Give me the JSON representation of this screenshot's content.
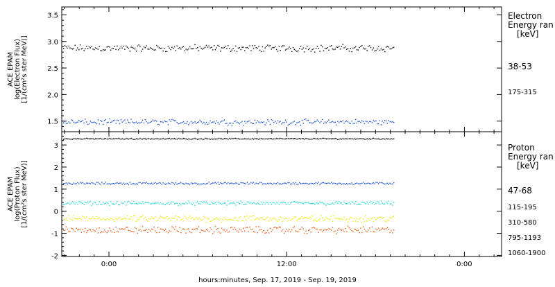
{
  "chart_data": [
    {
      "type": "scatter",
      "ylabel_lines": [
        "ACE EPAM",
        "log(Electron Flux)",
        "[1/(cm²s ster MeV)]"
      ],
      "ylim": [
        1.3,
        3.65
      ],
      "yticks": [
        1.5,
        2.0,
        2.5,
        3.0,
        3.5
      ],
      "ytick_labels": [
        "1.5",
        "2.0",
        "2.5",
        "3.0",
        "3.5"
      ],
      "legend_title": [
        "Electron",
        "Energy ran",
        "[keV]"
      ],
      "series": [
        {
          "name": "38-53",
          "color": "#000000",
          "mean": 2.88,
          "spread": 0.05
        },
        {
          "name": "175-315",
          "color": "#1a4fd0",
          "mean": 1.49,
          "spread": 0.04
        }
      ]
    },
    {
      "type": "scatter",
      "ylabel_lines": [
        "ACE EPAM",
        "log(Proton Flux)",
        "[1/(cm²s ster MeV)]"
      ],
      "ylim": [
        -2.05,
        3.6
      ],
      "yticks": [
        -2,
        -1,
        0,
        1,
        2,
        3
      ],
      "ytick_labels": [
        "-2",
        "-1",
        "0",
        "1",
        "2",
        "3"
      ],
      "legend_title": [
        "Proton",
        "Energy ran",
        "[keV]"
      ],
      "series": [
        {
          "name": "47-68",
          "color": "#000000",
          "mean": 3.3,
          "spread": 0.02
        },
        {
          "name": "115-195",
          "color": "#1a4fd0",
          "mean": 1.28,
          "spread": 0.04
        },
        {
          "name": "310-580",
          "color": "#20d8d8",
          "mean": 0.38,
          "spread": 0.07
        },
        {
          "name": "795-1193",
          "color": "#e8e800",
          "mean": -0.32,
          "spread": 0.11
        },
        {
          "name": "1060-1900",
          "color": "#e85a10",
          "mean": -0.83,
          "spread": 0.12
        }
      ]
    }
  ],
  "x_axis": {
    "tick_labels": [
      "0:00",
      "12:00",
      "0:00"
    ],
    "xlabel": "hours:minutes, Sep. 17, 2019 - Sep. 19, 2019"
  }
}
